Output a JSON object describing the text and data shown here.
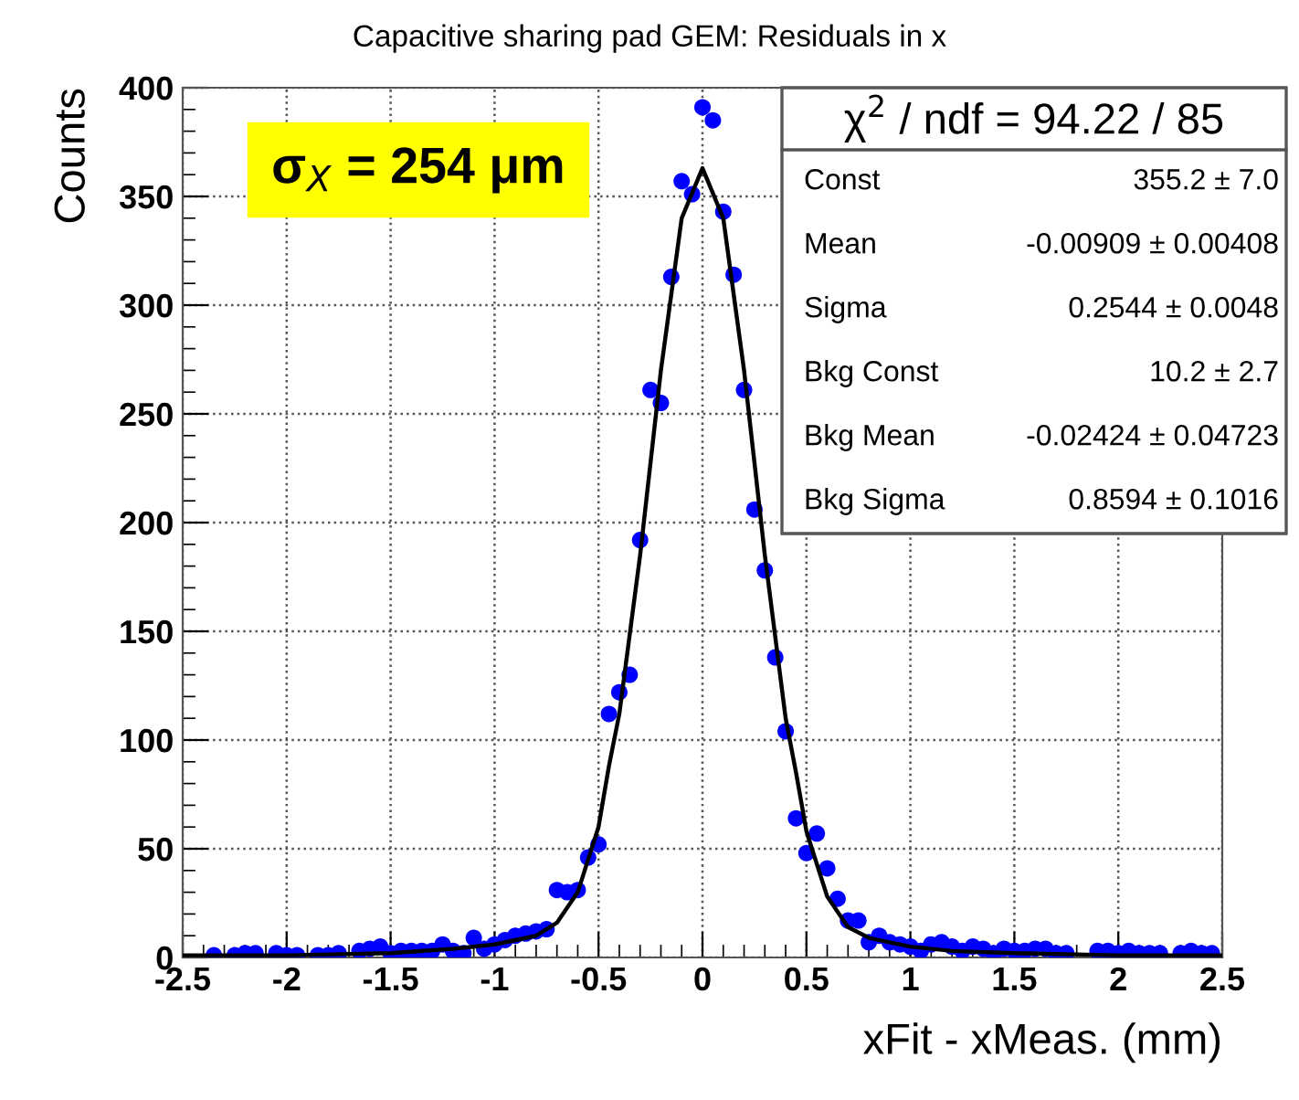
{
  "chart_data": {
    "type": "scatter",
    "title": "Capacitive sharing pad GEM: Residuals in x",
    "xlabel": "xFit - xMeas. (mm)",
    "ylabel": "Counts",
    "xlim": [
      -2.5,
      2.5
    ],
    "ylim": [
      0,
      400
    ],
    "xticks": [
      -2.5,
      -2,
      -1.5,
      -1,
      -0.5,
      0,
      0.5,
      1,
      1.5,
      2,
      2.5
    ],
    "yticks": [
      0,
      50,
      100,
      150,
      200,
      250,
      300,
      350,
      400
    ],
    "grid": true,
    "marker": "circle",
    "series": [
      {
        "color": "#0000ff",
        "x": [
          -2.35,
          -2.25,
          -2.2,
          -2.15,
          -2.05,
          -2.0,
          -1.95,
          -1.85,
          -1.8,
          -1.75,
          -1.65,
          -1.6,
          -1.55,
          -1.5,
          -1.45,
          -1.4,
          -1.35,
          -1.3,
          -1.25,
          -1.2,
          -1.15,
          -1.1,
          -1.05,
          -1.0,
          -0.95,
          -0.9,
          -0.85,
          -0.8,
          -0.75,
          -0.7,
          -0.65,
          -0.6,
          -0.55,
          -0.5,
          -0.45,
          -0.4,
          -0.35,
          -0.3,
          -0.25,
          -0.2,
          -0.15,
          -0.1,
          -0.05,
          0,
          0.05,
          0.1,
          0.15,
          0.2,
          0.25,
          0.3,
          0.35,
          0.4,
          0.45,
          0.5,
          0.55,
          0.6,
          0.65,
          0.7,
          0.75,
          0.8,
          0.85,
          0.9,
          0.95,
          1.0,
          1.05,
          1.1,
          1.15,
          1.2,
          1.25,
          1.3,
          1.35,
          1.4,
          1.45,
          1.5,
          1.55,
          1.6,
          1.65,
          1.7,
          1.75,
          1.9,
          1.95,
          2.0,
          2.05,
          2.1,
          2.15,
          2.2,
          2.3,
          2.35,
          2.4,
          2.45
        ],
        "values": [
          1,
          1,
          2,
          2,
          2,
          1,
          1,
          1,
          1,
          2,
          3,
          4,
          5,
          2,
          3,
          3,
          3,
          3,
          6,
          3,
          2,
          9,
          4,
          6,
          8,
          10,
          11,
          12,
          13,
          31,
          30,
          31,
          46,
          52,
          112,
          122,
          130,
          192,
          261,
          255,
          313,
          357,
          351,
          391,
          385,
          343,
          314,
          261,
          206,
          178,
          138,
          104,
          64,
          48,
          57,
          41,
          27,
          17,
          17,
          7,
          10,
          7,
          6,
          5,
          3,
          6,
          7,
          5,
          3,
          5,
          4,
          2,
          4,
          3,
          3,
          4,
          4,
          2,
          2,
          3,
          3,
          2,
          3,
          2,
          2,
          2,
          2,
          3,
          2,
          2
        ]
      },
      {
        "type": "line",
        "color": "#000000",
        "marker": "none",
        "line_style": "solid",
        "x": [
          -2.5,
          -2.0,
          -1.5,
          -1.2,
          -1.0,
          -0.8,
          -0.7,
          -0.6,
          -0.5,
          -0.45,
          -0.4,
          -0.3,
          -0.2,
          -0.1,
          0,
          0.1,
          0.2,
          0.3,
          0.4,
          0.45,
          0.5,
          0.6,
          0.7,
          0.8,
          1.0,
          1.2,
          1.5,
          2.0,
          2.5
        ],
        "values": [
          1,
          1,
          2,
          4,
          6,
          10,
          16,
          30,
          60,
          88,
          112,
          185,
          270,
          340,
          363,
          340,
          270,
          185,
          110,
          85,
          58,
          28,
          14,
          9,
          5,
          3,
          2,
          1,
          1
        ]
      }
    ],
    "annotations": [
      "σ$_{X}$ = 254 μm",
      "χ$^{2}$ / ndf = 94.22 / 85",
      "Const",
      "355.2 ± 7.0",
      "Mean",
      "-0.00909 ± 0.00408",
      "Sigma",
      "0.2544 ± 0.0048",
      "Bkg Const",
      "10.2 ± 2.7",
      "Bkg Mean",
      "-0.02424 ± 0.04723",
      "Bkg Sigma",
      "0.8594 ± 0.1016"
    ]
  }
}
